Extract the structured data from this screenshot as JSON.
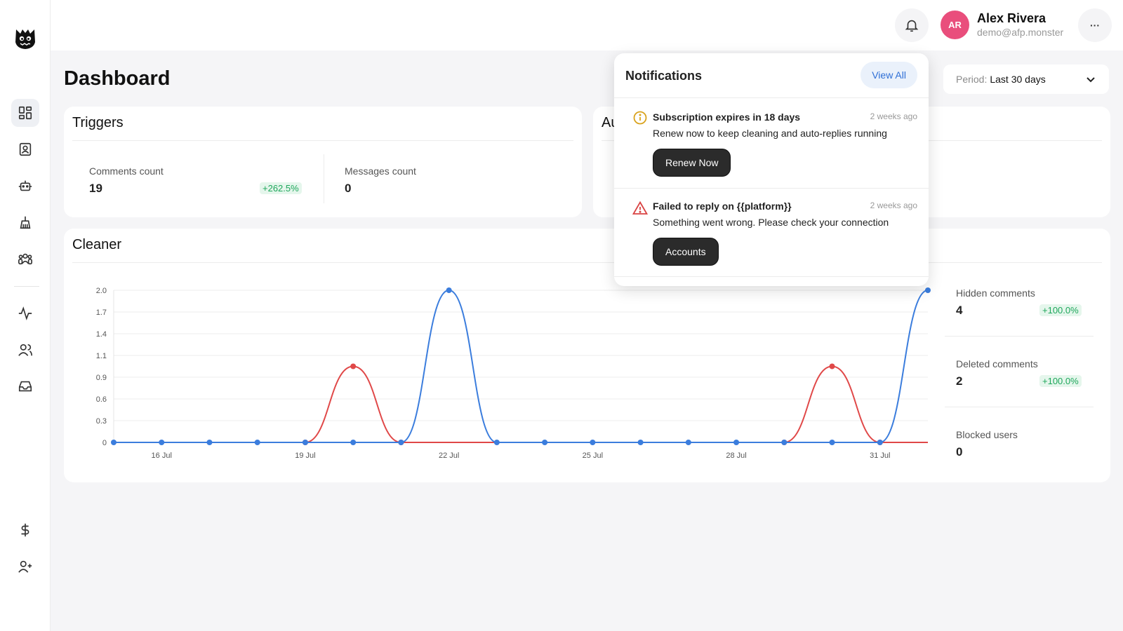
{
  "header": {
    "user_initials": "AR",
    "user_name": "Alex Rivera",
    "user_email": "demo@afp.monster",
    "more_label": "···"
  },
  "page": {
    "title": "Dashboard",
    "period_label": "Period:",
    "period_value": "Last 30 days"
  },
  "triggers": {
    "title": "Triggers",
    "comments_label": "Comments count",
    "comments_value": "19",
    "comments_change": "+262.5%",
    "messages_label": "Messages count",
    "messages_value": "0"
  },
  "second_card": {
    "title_partial": "Au"
  },
  "cleaner": {
    "title": "Cleaner",
    "stats": [
      {
        "label": "Hidden comments",
        "value": "4",
        "change": "+100.0%"
      },
      {
        "label": "Deleted comments",
        "value": "2",
        "change": "+100.0%"
      },
      {
        "label": "Blocked users",
        "value": "0",
        "change": ""
      }
    ]
  },
  "notifications": {
    "title": "Notifications",
    "view_all": "View All",
    "items": [
      {
        "title": "Subscription expires in 18 days",
        "time": "2 weeks ago",
        "body": "Renew now to keep cleaning and auto-replies running",
        "button": "Renew Now",
        "icon": "info-icon"
      },
      {
        "title": "Failed to reply on {{platform}}",
        "time": "2 weeks ago",
        "body": "Something went wrong. Please check your connection",
        "button": "Accounts",
        "icon": "warning-icon"
      }
    ]
  },
  "chart_data": {
    "type": "line",
    "x": [
      "15 Jul",
      "16 Jul",
      "17 Jul",
      "18 Jul",
      "19 Jul",
      "20 Jul",
      "21 Jul",
      "22 Jul",
      "23 Jul",
      "24 Jul",
      "25 Jul",
      "26 Jul",
      "27 Jul",
      "28 Jul",
      "29 Jul",
      "30 Jul",
      "31 Jul",
      "1 Aug"
    ],
    "x_tick_labels": [
      "16 Jul",
      "19 Jul",
      "22 Jul",
      "25 Jul",
      "28 Jul",
      "31 Jul"
    ],
    "y_tick_labels": [
      "0",
      "0.3",
      "0.6",
      "0.9",
      "1.1",
      "1.4",
      "1.7",
      "2.0"
    ],
    "ylim": [
      0,
      2
    ],
    "grid": true,
    "series": [
      {
        "color": "#3b7ddd",
        "values": [
          0,
          0,
          0,
          0,
          0,
          0,
          0,
          2,
          0,
          0,
          0,
          0,
          0,
          0,
          0,
          0,
          0,
          2
        ]
      },
      {
        "color": "#e04848",
        "values": [
          0,
          0,
          0,
          0,
          0,
          1,
          0,
          0,
          0,
          0,
          0,
          0,
          0,
          0,
          0,
          1,
          0,
          0
        ]
      },
      {
        "color": "#f0b429",
        "values": [
          0,
          0,
          0,
          0,
          0,
          0,
          0,
          0,
          0,
          0,
          0,
          0,
          0,
          0,
          0,
          0,
          0,
          0
        ]
      }
    ]
  }
}
